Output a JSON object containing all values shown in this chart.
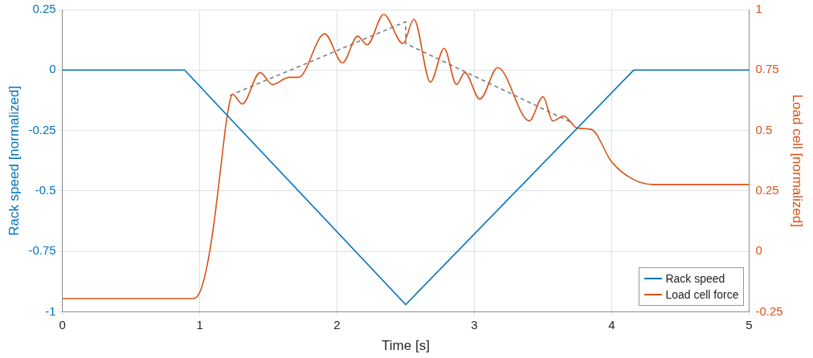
{
  "chart_data": {
    "type": "line",
    "xlabel": "Time [s]",
    "ylabel": "Rack speed [normalized]",
    "y2label": "Load cell [normalized]",
    "xlim": [
      0,
      5
    ],
    "xticks": [
      0,
      1,
      2,
      3,
      4,
      5
    ],
    "ylim": [
      -1,
      0.25
    ],
    "yticks": [
      -1,
      -0.75,
      -0.5,
      -0.25,
      0,
      0.25
    ],
    "y2lim": [
      -0.25,
      1
    ],
    "y2ticks": [
      -0.25,
      0,
      0.25,
      0.5,
      0.75,
      1
    ],
    "grid": true,
    "legend": "bottom right",
    "marker": "none",
    "series": [
      {
        "name": "Rack speed",
        "color": "#0072bd",
        "x": [
          0,
          0.89,
          2.5,
          4.16,
          5
        ],
        "values": [
          0,
          0,
          -0.97,
          0,
          0
        ]
      },
      {
        "name": "Load cell force",
        "color": "#d95319",
        "axis": "y2",
        "x": [
          0,
          0.95,
          1.0,
          1.05,
          1.1,
          1.15,
          1.2,
          1.24,
          1.31,
          1.44,
          1.53,
          1.65,
          1.72,
          1.91,
          2.04,
          2.15,
          2.22,
          2.34,
          2.48,
          2.56,
          2.68,
          2.78,
          2.87,
          2.93,
          3.04,
          3.17,
          3.4,
          3.5,
          3.57,
          3.65,
          3.75,
          3.85,
          4.0,
          4.15,
          4.3,
          5
        ],
        "values": [
          -0.195,
          -0.195,
          -0.17,
          -0.07,
          0.1,
          0.33,
          0.56,
          0.65,
          0.61,
          0.74,
          0.69,
          0.72,
          0.72,
          0.9,
          0.78,
          0.89,
          0.855,
          0.98,
          0.86,
          0.96,
          0.7,
          0.84,
          0.69,
          0.74,
          0.63,
          0.76,
          0.54,
          0.64,
          0.54,
          0.56,
          0.51,
          0.505,
          0.37,
          0.3,
          0.277,
          0.277
        ]
      },
      {
        "color": "#808080",
        "axis": "y2",
        "line_style": "dashed",
        "x": [
          1.22,
          2.5,
          2.5,
          3.72
        ],
        "values": [
          0.645,
          0.95,
          0.86,
          0.53
        ]
      }
    ]
  }
}
